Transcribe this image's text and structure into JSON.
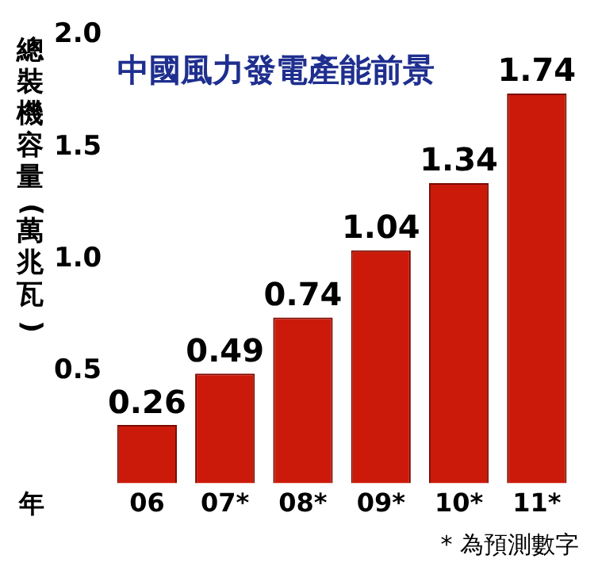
{
  "chart_data": {
    "type": "bar",
    "title": "中國風力發電產能前景",
    "ylabel": "總裝機容量(萬兆瓦)",
    "xlabel": "年",
    "categories": [
      "06",
      "07*",
      "08*",
      "09*",
      "10*",
      "11*"
    ],
    "values": [
      0.26,
      0.49,
      0.74,
      1.04,
      1.34,
      1.74
    ],
    "color": "#cc1a0a",
    "ylim": [
      0,
      2.0
    ],
    "yticks": [
      0.5,
      {
        "value": 1,
        "label": "1.0"
      },
      1.5,
      {
        "value": 2,
        "label": "2.0"
      }
    ],
    "grid": false,
    "data_labels": true,
    "legend": false,
    "annotations": [
      "* 為預測數字"
    ]
  }
}
